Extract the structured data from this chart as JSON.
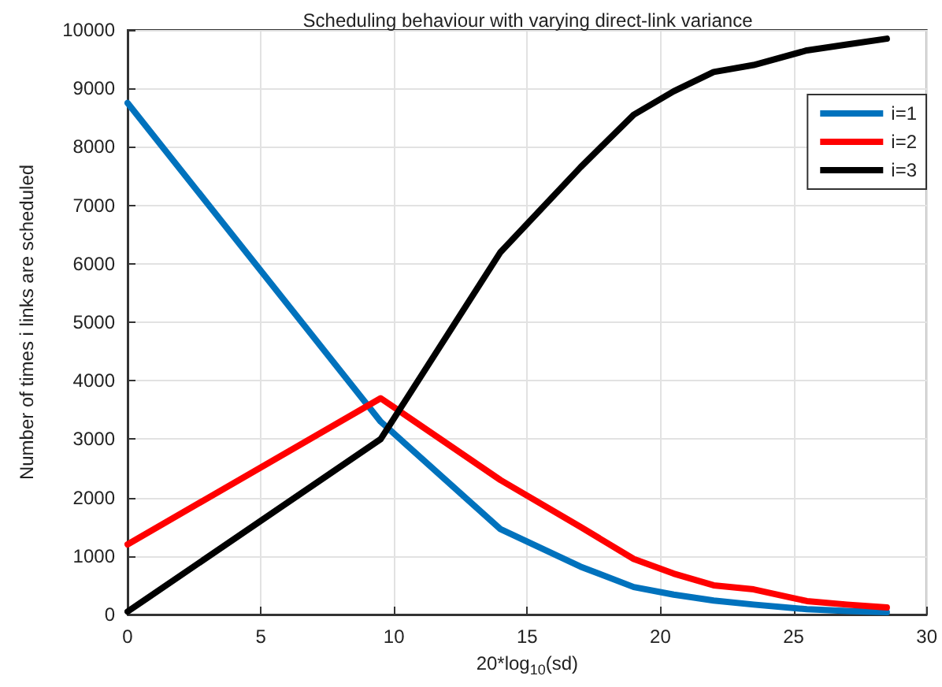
{
  "chart_data": {
    "type": "line",
    "title": "Scheduling behaviour with varying direct-link variance",
    "xlabel": "20*log$_{10}$(sd)",
    "ylabel": "Number of times i links are scheduled",
    "x": [
      0,
      9.5,
      14,
      17,
      19,
      20.5,
      22,
      23.5,
      25.5,
      27,
      28.5
    ],
    "series": [
      {
        "name": "i=1",
        "color": "#0072bd",
        "values": [
          8750,
          3300,
          1460,
          820,
          470,
          340,
          240,
          170,
          90,
          60,
          40
        ]
      },
      {
        "name": "i=2",
        "color": "#ff0000",
        "values": [
          1200,
          3700,
          2300,
          1500,
          950,
          700,
          500,
          430,
          230,
          170,
          120
        ]
      },
      {
        "name": "i=3",
        "color": "#000000",
        "values": [
          50,
          3000,
          6200,
          7650,
          8550,
          8950,
          9280,
          9400,
          9650,
          9750,
          9850
        ]
      }
    ],
    "xlim": [
      0,
      30
    ],
    "xticks": [
      0,
      5,
      10,
      15,
      20,
      25,
      30
    ],
    "ylim": [
      0,
      10000
    ],
    "yticks": [
      0,
      1000,
      2000,
      3000,
      4000,
      5000,
      6000,
      7000,
      8000,
      9000,
      10000
    ],
    "grid": true,
    "legend": "top right",
    "marker": "none",
    "line_style": "solid"
  }
}
